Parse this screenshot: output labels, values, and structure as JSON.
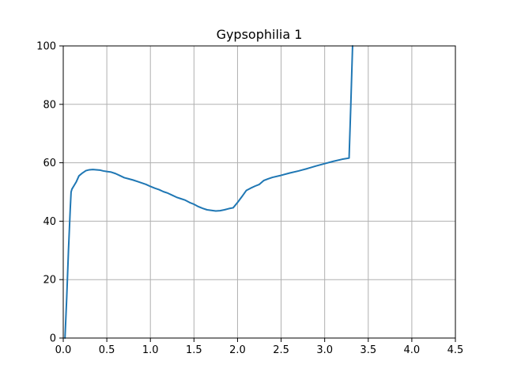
{
  "chart_data": {
    "type": "line",
    "title": "Gypsophilia 1",
    "xlabel": "",
    "ylabel": "",
    "xlim": [
      0,
      4.5
    ],
    "ylim": [
      0,
      100
    ],
    "xticks": [
      0.0,
      0.5,
      1.0,
      1.5,
      2.0,
      2.5,
      3.0,
      3.5,
      4.0,
      4.5
    ],
    "xtick_labels": [
      "0.0",
      "0.5",
      "1.0",
      "1.5",
      "2.0",
      "2.5",
      "3.0",
      "3.5",
      "4.0",
      "4.5"
    ],
    "yticks": [
      0,
      20,
      40,
      60,
      80,
      100
    ],
    "ytick_labels": [
      "0",
      "20",
      "40",
      "60",
      "80",
      "100"
    ],
    "grid": true,
    "series": [
      {
        "color": "#1f77b4",
        "x": [
          0.02,
          0.04,
          0.06,
          0.08,
          0.09,
          0.1,
          0.12,
          0.15,
          0.18,
          0.22,
          0.26,
          0.3,
          0.34,
          0.38,
          0.42,
          0.46,
          0.5,
          0.55,
          0.6,
          0.65,
          0.7,
          0.75,
          0.8,
          0.85,
          0.9,
          0.95,
          1.0,
          1.05,
          1.1,
          1.15,
          1.2,
          1.25,
          1.3,
          1.35,
          1.4,
          1.45,
          1.5,
          1.55,
          1.6,
          1.65,
          1.7,
          1.75,
          1.8,
          1.85,
          1.9,
          1.95,
          2.0,
          2.05,
          2.1,
          2.15,
          2.2,
          2.25,
          2.3,
          2.35,
          2.4,
          2.5,
          2.6,
          2.7,
          2.8,
          2.9,
          3.0,
          3.1,
          3.2,
          3.28,
          3.3,
          3.32
        ],
        "y": [
          0,
          14,
          30,
          44,
          50,
          51,
          52,
          53.5,
          55.5,
          56.5,
          57.3,
          57.6,
          57.7,
          57.6,
          57.5,
          57.2,
          57.0,
          56.8,
          56.3,
          55.6,
          54.9,
          54.5,
          54.1,
          53.6,
          53.1,
          52.6,
          51.9,
          51.3,
          50.8,
          50.1,
          49.6,
          48.9,
          48.2,
          47.7,
          47.2,
          46.4,
          45.8,
          45.0,
          44.4,
          43.9,
          43.7,
          43.5,
          43.6,
          43.9,
          44.3,
          44.6,
          46.4,
          48.4,
          50.5,
          51.3,
          52.0,
          52.6,
          53.9,
          54.5,
          55.0,
          55.7,
          56.5,
          57.2,
          58.0,
          58.9,
          59.7,
          60.5,
          61.2,
          61.6,
          80,
          100
        ]
      }
    ]
  }
}
